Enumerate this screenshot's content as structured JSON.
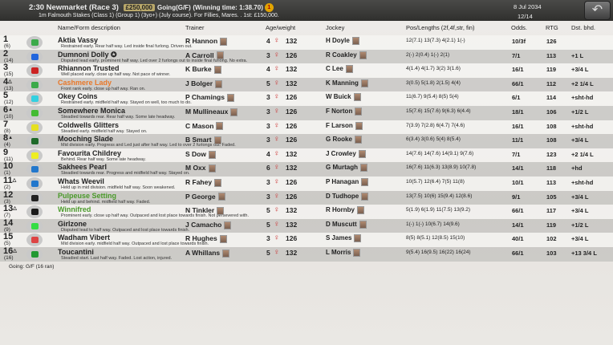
{
  "header": {
    "race": "2:30 Newmarket (Race 3)",
    "prize": "£250,000",
    "going": "Going(G/F)",
    "winning_time": "(Winning time: 1:38.70)",
    "coin": "1",
    "subtitle": "1m Falmouth Stakes (Class 1) (Group 1) (3yo+) (July course). For Fillies, Mares. . 1st: £150,000.",
    "date": "8 Jul 2034",
    "counter": "12/14",
    "back_icon": "back-arrow-icon"
  },
  "columns": {
    "name": "Name/Form description",
    "trainer": "Trainer",
    "age": "Age/weight",
    "jockey": "Jockey",
    "pos": "Pos/Lengths (2f,4f,str, fin)",
    "odds": "Odds.",
    "rtg": "RTG",
    "dst": "Dst. bhd."
  },
  "colors": {
    "highlight_orange": "#e8782a",
    "highlight_green": "#4a9a2a",
    "header_bg": "#3a3a38",
    "sex_icon": "#cc3333"
  },
  "rows": [
    {
      "num": "1",
      "mark": "",
      "draw": "(6)",
      "silk": "#3caa4a",
      "name": "Aktia Vassy",
      "desc": "Restrained early. Rear half way. Led inside final furlong. Driven out.",
      "trainer": "R Hannon",
      "age": "4",
      "weight": "132",
      "jockey": "H Doyle",
      "pos": "12(7.1) 13(7.3) 4(2.1) 1(-)",
      "odds": "10/3f",
      "rtg": "126",
      "dst": ""
    },
    {
      "num": "2",
      "mark": "",
      "draw": "(14)",
      "silk": "#2266dd",
      "name": "Dumnoni Dolly ✪",
      "desc": "Disputed lead early. prominent half way. Led over 2 furlongs out to inside final furlong. No extra.",
      "trainer": "A Carroll",
      "age": "3",
      "weight": "126",
      "jockey": "R Coakley",
      "pos": "2(-) 2(0.4) 1(-) 2(1)",
      "odds": "7/1",
      "rtg": "113",
      "dst": "+1 L"
    },
    {
      "num": "3",
      "mark": "",
      "draw": "(15)",
      "silk": "#cc2222",
      "name": "Rhiannon Trusted",
      "desc": "Well placed early. close up half way. Not pace of winner.",
      "trainer": "K Burke",
      "age": "4",
      "weight": "132",
      "jockey": "C Lee",
      "pos": "4(1.4) 4(1.7) 3(2) 3(1.6)",
      "odds": "16/1",
      "rtg": "119",
      "dst": "+3/4 L"
    },
    {
      "num": "4",
      "mark": "△",
      "draw": "(13)",
      "silk": "#3caa4a",
      "name": "Cashmere Lady",
      "color": "#e8782a",
      "desc": "Front rank early. close up half way. Ran on.",
      "trainer": "J Bolger",
      "age": "5",
      "weight": "132",
      "jockey": "K Manning",
      "pos": "3(0.5) 5(1.8) 2(1.5) 4(4)",
      "odds": "66/1",
      "rtg": "112",
      "dst": "+2 1/4 L"
    },
    {
      "num": "5",
      "mark": "",
      "draw": "(12)",
      "silk": "#33d0e0",
      "name": "Okey Coins",
      "desc": "Restrained early. midfield half way. Stayed on well, too much to do.",
      "trainer": "P Chamings",
      "age": "3",
      "weight": "126",
      "jockey": "W Buick",
      "pos": "11(6.7) 9(5.4) 8(5) 5(4)",
      "odds": "6/1",
      "rtg": "114",
      "dst": "+sht-hd"
    },
    {
      "num": "6",
      "mark": "▲",
      "draw": "(10)",
      "silk": "#44bb33",
      "name": "Somewhere Monica",
      "desc": "Steadied towards rear. Rear half way. Some late headway.",
      "trainer": "M Mullineaux",
      "age": "3",
      "weight": "126",
      "jockey": "F Norton",
      "pos": "15(7.6) 15(7.6) 9(6.3) 6(4.4)",
      "odds": "18/1",
      "rtg": "106",
      "dst": "+1/2 L"
    },
    {
      "num": "7",
      "mark": "",
      "draw": "(8)",
      "silk": "#e6e020",
      "name": "Coldwells Glitters",
      "desc": "Steadied early. midfield half way. Stayed on.",
      "trainer": "C Mason",
      "age": "3",
      "weight": "126",
      "jockey": "F Larson",
      "pos": "7(3.9) 7(2.8) 6(4.7) 7(4.6)",
      "odds": "16/1",
      "rtg": "108",
      "dst": "+sht-hd"
    },
    {
      "num": "8",
      "mark": "▲",
      "draw": "(4)",
      "silk": "#1e6a2a",
      "name": "Mooching Slade",
      "desc": "Mid division early. Progress and Led just after half way. Led to over 2 furlongs out. Faded.",
      "trainer": "B Smart",
      "age": "3",
      "weight": "126",
      "jockey": "G Rooke",
      "pos": "6(3.4) 3(0.6) 5(4) 8(5.4)",
      "odds": "11/1",
      "rtg": "108",
      "dst": "+3/4 L"
    },
    {
      "num": "9",
      "mark": "",
      "draw": "(11)",
      "silk": "#eeee22",
      "name": "Favourita Childrey",
      "desc": "Behind. Rear half way. Some late headway.",
      "trainer": "S Dow",
      "age": "4",
      "weight": "132",
      "jockey": "J Crowley",
      "pos": "14(7.6) 14(7.6) 14(9.1) 9(7.6)",
      "odds": "7/1",
      "rtg": "123",
      "dst": "+2 1/4 L"
    },
    {
      "num": "10",
      "mark": "",
      "draw": "(1)",
      "silk": "#2277cc",
      "name": "Sakhees Pearl",
      "desc": "Steadied towards rear. Progress and midfield half way. Stayed on.",
      "trainer": "M Oxx",
      "age": "6",
      "weight": "132",
      "jockey": "G Murtagh",
      "pos": "16(7.6) 11(6.3) 13(8.9) 10(7.8)",
      "odds": "14/1",
      "rtg": "118",
      "dst": "+hd"
    },
    {
      "num": "11",
      "mark": "△",
      "draw": "(2)",
      "silk": "#2277cc",
      "name": "Whats Weevil",
      "desc": "Held up in mid division. midfield half way. Soon weakened.",
      "trainer": "R Fahey",
      "age": "3",
      "weight": "126",
      "jockey": "P Hanagan",
      "pos": "10(5.7) 12(6.4) 7(5) 11(8)",
      "odds": "10/1",
      "rtg": "113",
      "dst": "+sht-hd"
    },
    {
      "num": "12",
      "mark": "",
      "draw": "(3)",
      "silk": "#222222",
      "name": "Pulpeuse Setting",
      "color": "#4a9a2a",
      "desc": "Held up and behind. midfield half way. Faded.",
      "trainer": "P George",
      "age": "3",
      "weight": "126",
      "jockey": "D Tudhope",
      "pos": "13(7.5) 10(6) 15(9.4) 12(8.6)",
      "odds": "9/1",
      "rtg": "105",
      "dst": "+3/4 L"
    },
    {
      "num": "13",
      "mark": "△",
      "draw": "(7)",
      "silk": "#1a1a1a",
      "name": "Winnifred",
      "color": "#4a9a2a",
      "desc": "Prominent early. close up half way. Outpaced and lost place towards finish. Not persevered with.",
      "trainer": "N Tinkler",
      "age": "5",
      "weight": "132",
      "jockey": "R Hornby",
      "pos": "5(1.9) 6(1.9) 11(7.5) 13(9.2)",
      "odds": "66/1",
      "rtg": "117",
      "dst": "+3/4 L"
    },
    {
      "num": "14",
      "mark": "",
      "draw": "(9)",
      "silk": "#33dd44",
      "name": "Girlzone",
      "desc": "Disputed lead to half way. Outpaced and lost place towards finish.",
      "trainer": "J Camacho",
      "age": "5",
      "weight": "132",
      "jockey": "D Muscutt",
      "pos": "1(-) 1(-) 10(6.7) 14(9.6)",
      "odds": "14/1",
      "rtg": "119",
      "dst": "+1/2 L"
    },
    {
      "num": "15",
      "mark": "",
      "draw": "(5)",
      "silk": "#dd4444",
      "name": "Wadham Vibert",
      "desc": "Mid division early. midfield half way. Outpaced and lost place towards finish.",
      "trainer": "R Hughes",
      "age": "3",
      "weight": "126",
      "jockey": "S James",
      "pos": "8(5) 8(5.1) 12(8.5) 15(10)",
      "odds": "40/1",
      "rtg": "102",
      "dst": "+3/4 L"
    },
    {
      "num": "16",
      "mark": "△",
      "draw": "(16)",
      "silk": "#229933",
      "name": "Toucantini",
      "desc": "Steadied start. Last half way. Faded. Lost action, injured.",
      "trainer": "A Whillans",
      "age": "5",
      "weight": "132",
      "jockey": "L Morris",
      "pos": "9(5.4) 16(9.5) 16(22) 16(24)",
      "odds": "66/1",
      "rtg": "103",
      "dst": "+13 3/4 L"
    }
  ],
  "footer": "Going: G/F  (16 ran)"
}
